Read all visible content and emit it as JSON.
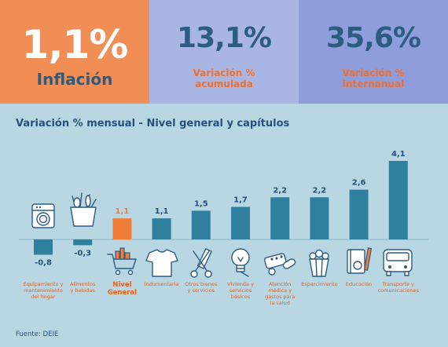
{
  "stats": {
    "inflation": {
      "value": "1,1%",
      "label": "Inflación"
    },
    "accumulated": {
      "value": "13,1%",
      "label_line1": "Variación %",
      "label_line2": "acumulada"
    },
    "interannual": {
      "value": "35,6%",
      "label_line1": "Variación %",
      "label_line2": "internanual"
    }
  },
  "colors": {
    "bar": "#2f7f9f",
    "highlight": "#f07d3a",
    "label": "#e8621f",
    "title": "#26517a",
    "background": "#b9d6e3"
  },
  "chart_title": "Variación % mensual - Nivel general y capítulos",
  "source": "Fuente: DEIE",
  "chart_data": {
    "type": "bar",
    "title": "Variación % mensual - Nivel general y capítulos",
    "categories": [
      [
        "Equipamiento y",
        "mantenimiento",
        "del hogar"
      ],
      [
        "Alimentos",
        "y bebidas"
      ],
      [
        "Nivel",
        "General"
      ],
      [
        "Indumentaria"
      ],
      [
        "Otros bienes",
        "y servicios"
      ],
      [
        "Vivienda y",
        "servicios",
        "básicos"
      ],
      [
        "Atención",
        "médica y",
        "gastos para",
        "la salud"
      ],
      [
        "Esparcimiento"
      ],
      [
        "Educación"
      ],
      [
        "Transporte y",
        "comunicaciones"
      ]
    ],
    "values": [
      -0.8,
      -0.3,
      1.1,
      1.1,
      1.5,
      1.7,
      2.2,
      2.2,
      2.6,
      4.1
    ],
    "value_labels": [
      "-0,8",
      "-0,3",
      "1,1",
      "1,1",
      "1,5",
      "1,7",
      "2,2",
      "2,2",
      "2,6",
      "4,1"
    ],
    "highlight_index": 2,
    "icons": [
      "washing-machine-icon",
      "grocery-bag-icon",
      "shopping-cart-icon",
      "tshirt-icon",
      "scissors-comb-icon",
      "light-bulb-icon",
      "medicine-icon",
      "popcorn-icon",
      "notebook-pencil-icon",
      "bus-icon"
    ],
    "grid": false
  }
}
